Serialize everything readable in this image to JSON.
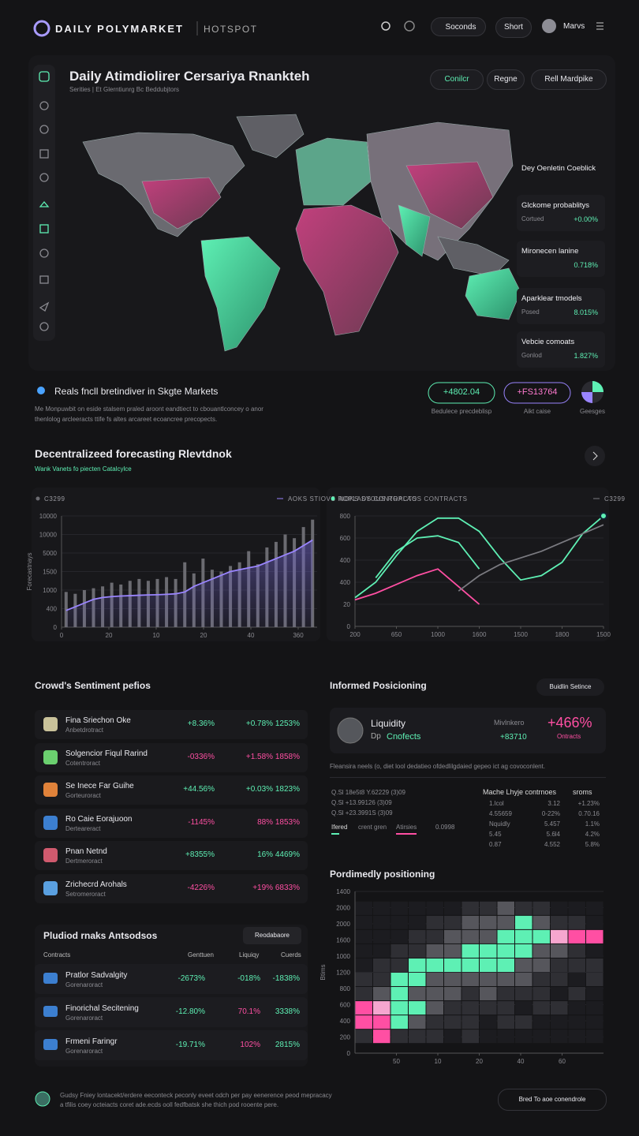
{
  "header": {
    "brand": "DAILY POLYMARKET",
    "tag": "HOTSPOT",
    "buttons": [
      "Soconds",
      "Short"
    ],
    "user": "Marvs"
  },
  "hero": {
    "title": "Daily Atimdiolirer Cersariya Rnankteh",
    "subtitle": "Serities | Et Glerntiunrg Bc Beddubjtors",
    "actions": [
      "Conilcr",
      "Regne",
      "Rell Mardpike"
    ],
    "cards": [
      {
        "title": "Dey Oenletin Coeblick"
      },
      {
        "title": "Glckome probablitys",
        "label": "Cortued",
        "value": "+0.00%"
      },
      {
        "title": "Mironecen lanine",
        "value": "0.718%"
      },
      {
        "title": "Aparklear tmodels",
        "label": "Posed",
        "value": "8.015%"
      },
      {
        "title": "Vebcie comoats",
        "label": "Gonlod",
        "value": "1.827%"
      }
    ]
  },
  "summary": {
    "title": "Reals fncll bretindiver in Skgte Markets",
    "text": [
      "Me Monpuwbit on eside stalsem praled aroont eandtiect to cbouantlconcey o anor",
      "thenlolog arcleeracts ttife fs altes arcareet ecoancree precopects."
    ],
    "stats": [
      {
        "value": "+4802.04",
        "label": "Bedulece precdeblisp"
      },
      {
        "value": "+FS13764",
        "label": "Aikt caise"
      },
      {
        "label": "Geesges"
      }
    ]
  },
  "section": {
    "title": "Decentralizeed forecasting Rlevtdnok",
    "subtitle": "Wank Vanets fo piecten Catalcylce"
  },
  "chart_data": [
    {
      "type": "bar-line",
      "ylabel": "Forecastnays",
      "ylim": [
        0,
        6
      ],
      "yticks": [
        {
          "value": 0,
          "label": "0"
        },
        {
          "value": 1,
          "label": "400"
        },
        {
          "value": 2,
          "label": "1000"
        },
        {
          "value": 3,
          "label": "1500"
        },
        {
          "value": 4,
          "label": "5000"
        },
        {
          "value": 5,
          "label": "10000"
        },
        {
          "value": 6,
          "label": "10000"
        }
      ],
      "xlim": [
        0,
        5.4
      ],
      "xticks": [
        {
          "value": 0,
          "label": "0"
        },
        {
          "value": 1,
          "label": "20"
        },
        {
          "value": 2,
          "label": "10"
        },
        {
          "value": 3,
          "label": "20"
        },
        {
          "value": 4,
          "label": "40"
        },
        {
          "value": 5,
          "label": "360"
        }
      ],
      "series": [
        {
          "name": "C3299",
          "kind": "bar",
          "color": "#6b6b71",
          "values": [
            1.9,
            1.8,
            2.0,
            2.1,
            2.2,
            2.4,
            2.3,
            2.5,
            2.6,
            2.5,
            2.6,
            2.7,
            2.6,
            3.5,
            2.9,
            3.7,
            3.1,
            3.0,
            3.3,
            3.5,
            4.1,
            3.4,
            4.3,
            4.6,
            5.0,
            4.8,
            5.4,
            5.8
          ]
        },
        {
          "name": "AOKS STIOVS ROPLADS CONTRACTS",
          "kind": "line",
          "color": "#9a85ff",
          "values": [
            0.9,
            1.1,
            1.3,
            1.5,
            1.6,
            1.65,
            1.68,
            1.7,
            1.72,
            1.74,
            1.75,
            1.77,
            1.8,
            1.9,
            2.2,
            2.4,
            2.6,
            2.8,
            3.0,
            3.1,
            3.2,
            3.3,
            3.5,
            3.7,
            3.9,
            4.1,
            4.4,
            4.7
          ]
        }
      ]
    },
    {
      "type": "line",
      "ylim": [
        0,
        5
      ],
      "yticks": [
        {
          "value": 0,
          "label": "0"
        },
        {
          "value": 1,
          "label": "20"
        },
        {
          "value": 2,
          "label": "400"
        },
        {
          "value": 3,
          "label": "400"
        },
        {
          "value": 4,
          "label": "600"
        },
        {
          "value": 5,
          "label": "800"
        }
      ],
      "xlim": [
        0,
        6
      ],
      "xticks": [
        {
          "value": 0,
          "label": "200"
        },
        {
          "value": 1,
          "label": "650"
        },
        {
          "value": 2,
          "label": "1000"
        },
        {
          "value": 3,
          "label": "1600"
        },
        {
          "value": 4,
          "label": "1500"
        },
        {
          "value": 5,
          "label": "1800"
        },
        {
          "value": 6,
          "label": "1500"
        }
      ],
      "x": [
        0,
        0.5,
        1,
        1.5,
        2,
        2.5,
        3,
        3.5,
        4,
        4.5,
        5,
        5.5,
        6
      ],
      "series": [
        {
          "name": "NOKS SYOUS ROPLAOS CONTRACTS",
          "color": "#5ef0b4",
          "values": [
            1.3,
            2.0,
            3.2,
            4.3,
            4.9,
            4.9,
            4.3,
            3.1,
            2.1,
            2.3,
            2.9,
            4.2,
            5.0
          ]
        },
        {
          "color": "#5ef0b4",
          "values": [
            null,
            2.2,
            3.4,
            4.0,
            4.1,
            3.8,
            2.6,
            null,
            null,
            null,
            null,
            null,
            null
          ]
        },
        {
          "color": "#ff4fa3",
          "values": [
            1.2,
            1.5,
            1.9,
            2.3,
            2.6,
            1.8,
            1.0,
            null,
            null,
            null,
            null,
            null,
            null
          ]
        },
        {
          "name": "C3299",
          "color": "#7a7a80",
          "values": [
            null,
            null,
            null,
            null,
            null,
            1.6,
            2.3,
            2.8,
            3.1,
            3.4,
            3.8,
            4.2,
            4.6
          ]
        }
      ]
    },
    {
      "type": "heatmap",
      "title": "Pordimedly positioning",
      "ylabel": "Btims",
      "ylim": [
        0,
        10
      ],
      "yticks": [
        {
          "value": 0,
          "label": "0"
        },
        {
          "value": 1,
          "label": "200"
        },
        {
          "value": 2,
          "label": "400"
        },
        {
          "value": 3,
          "label": "600"
        },
        {
          "value": 4,
          "label": "800"
        },
        {
          "value": 5,
          "label": "1200"
        },
        {
          "value": 6,
          "label": "1000"
        },
        {
          "value": 7,
          "label": "1600"
        },
        {
          "value": 8,
          "label": "2000"
        },
        {
          "value": 9,
          "label": "2000"
        },
        {
          "value": 10,
          "label": "1400"
        }
      ],
      "xlim": [
        0,
        6
      ],
      "xticks": [
        {
          "value": 1,
          "label": "50"
        },
        {
          "value": 2,
          "label": "10"
        },
        {
          "value": 3,
          "label": "20"
        },
        {
          "value": 4,
          "label": "40"
        },
        {
          "value": 5,
          "label": "60"
        }
      ],
      "palette": [
        "#1c1c20",
        "#2f2f34",
        "#56565c",
        "#5ef0b4",
        "#ff4fa3",
        "#f6a6cf"
      ],
      "cells": [
        [
          0,
          0,
          0,
          0,
          0,
          0,
          1,
          1,
          2,
          1,
          1,
          0,
          0,
          0
        ],
        [
          0,
          0,
          0,
          0,
          1,
          1,
          2,
          2,
          2,
          3,
          2,
          1,
          1,
          0
        ],
        [
          0,
          0,
          0,
          1,
          1,
          2,
          2,
          2,
          3,
          3,
          3,
          5,
          4,
          4
        ],
        [
          0,
          0,
          1,
          1,
          2,
          2,
          3,
          3,
          3,
          3,
          2,
          2,
          1,
          0
        ],
        [
          0,
          1,
          1,
          3,
          3,
          3,
          3,
          3,
          3,
          2,
          2,
          1,
          1,
          1
        ],
        [
          1,
          1,
          3,
          3,
          2,
          2,
          2,
          2,
          2,
          2,
          1,
          1,
          0,
          1
        ],
        [
          1,
          2,
          3,
          2,
          2,
          2,
          1,
          2,
          1,
          1,
          1,
          0,
          1,
          0
        ],
        [
          4,
          5,
          3,
          3,
          2,
          1,
          1,
          1,
          1,
          0,
          1,
          1,
          0,
          0
        ],
        [
          4,
          4,
          3,
          2,
          1,
          1,
          1,
          0,
          1,
          1,
          0,
          0,
          0,
          0
        ],
        [
          1,
          4,
          1,
          1,
          1,
          0,
          1,
          0,
          0,
          0,
          0,
          0,
          0,
          0
        ]
      ]
    }
  ],
  "sentiment": {
    "title": "Crowd's Sentiment pefios",
    "rows": [
      {
        "name": "Fina Sriechon Oke",
        "sub": "Anbetdrotract",
        "change": "+8.36%",
        "stats": "+0.78% 1253%"
      },
      {
        "name": "Solgencior Fiqul Rarind",
        "sub": "Cotentroract",
        "change": "-0336%",
        "stats": "+1.58% 1858%"
      },
      {
        "name": "Se Inece Far Guihe",
        "sub": "Gorteuroract",
        "change": "+44.56%",
        "stats": "+0.03% 1823%"
      },
      {
        "name": "Ro Caie Eorajuoon",
        "sub": "Derteareract",
        "change": "-1145%",
        "stats": "88% 1853%"
      },
      {
        "name": "Pnan Netnd",
        "sub": "Dertmeroract",
        "change": "+8355%",
        "stats": "16% 4469%"
      },
      {
        "name": "Zrichecrd Arohals",
        "sub": "Setromeroract",
        "change": "-4226%",
        "stats": "+19% 6833%"
      }
    ]
  },
  "plural": {
    "title": "Pludiod rnaks Antsodsos",
    "button": "Reodabaore",
    "headers": [
      "Contracts",
      "Genttuen",
      "Liquiqy",
      "Cuerds"
    ],
    "rows": [
      {
        "name": "Pratlor Sadvalgity",
        "sub": "Gorenaroract",
        "cells": [
          "-2673%",
          "-018%",
          "-1838%"
        ]
      },
      {
        "name": "Finorichal Secitening",
        "sub": "Gorenaroract",
        "cells": [
          "-12.80%",
          "70.1%",
          "3338%"
        ]
      },
      {
        "name": "Frmeni Faringr",
        "sub": "Gorenaroract",
        "cells": [
          "-19.71%",
          "102%",
          "2815%"
        ]
      }
    ]
  },
  "informed": {
    "title": "Informed Posicioning",
    "button": "Buidlin Setince",
    "card": {
      "title": "Liquidity",
      "prefix": "Dp",
      "tag": "Cnofects",
      "label": "Mivlnkero",
      "value": "+466%",
      "unit": "Ontracts",
      "sub": "+83710"
    },
    "note": "Fleansira neels (o, diet lool dedatieo ofdedlilgdaied gepeo ict ag covoconlent.",
    "left": [
      "Q.Sl 18e5t8 Y.62229  (3)09",
      "Q.Sl +13.99126  (3)09",
      "Q.Sl +23.3991S  (3)09"
    ],
    "legend": [
      "Ifered",
      "crent gren",
      "Atirsies",
      "0.0998"
    ],
    "right_head": [
      "Mache Lhyje contrnoes",
      "sroms"
    ],
    "right": [
      [
        "1.lcol",
        "3.12",
        "+1.23%"
      ],
      [
        "4.55659",
        "0-22%",
        "0.70.16"
      ],
      [
        "Nquidly",
        "5.457",
        "1.1%"
      ],
      [
        "5.45",
        "5.6l4",
        "4.2%"
      ],
      [
        "0.87",
        "4.552",
        "5.8%"
      ]
    ]
  },
  "footer": {
    "text": [
      "Gudsy Fniey lontacekt/erdere eeconteck peconly eveet odch per pay eenerence peod mepracacy",
      "a tfilis coey octeiacts coret ade.ecds ooll fedfbatsk she thich pod rooente pere."
    ],
    "button": "Bred To aoe conendrole"
  }
}
